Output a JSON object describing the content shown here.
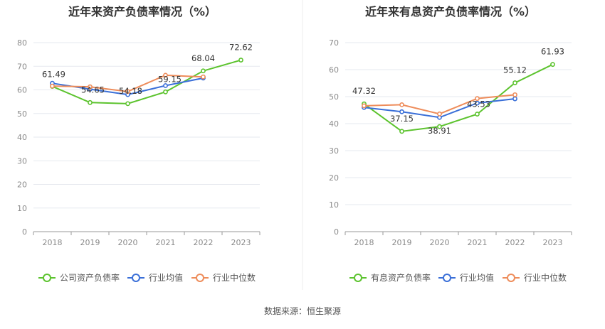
{
  "source": "数据来源：恒生聚源",
  "colors": {
    "company": "#5cc32e",
    "avg": "#3a6fd8",
    "median": "#ee8c5a",
    "grid": "#e6e9ef",
    "axis": "#9a9a9a"
  },
  "chart_data": [
    {
      "type": "line",
      "title": "近年来资产负债率情况（%）",
      "categories": [
        "2018",
        "2019",
        "2020",
        "2021",
        "2022",
        "2023"
      ],
      "ylim": [
        0,
        80
      ],
      "yticks": [
        0,
        10,
        20,
        30,
        40,
        50,
        60,
        70,
        80
      ],
      "grid": true,
      "legend_position": "bottom",
      "series": [
        {
          "name": "公司资产负债率",
          "color_key": "company",
          "values": [
            61.49,
            54.65,
            54.18,
            59.15,
            68.04,
            72.62
          ],
          "labels": [
            "61.49",
            "54.65",
            "54.18",
            "59.15",
            "68.04",
            "72.62"
          ]
        },
        {
          "name": "行业均值",
          "color_key": "avg",
          "values": [
            62.8,
            60.3,
            58.0,
            61.8,
            65.0,
            null
          ]
        },
        {
          "name": "行业中位数",
          "color_key": "median",
          "values": [
            61.6,
            61.3,
            59.3,
            66.2,
            65.5,
            null
          ]
        }
      ]
    },
    {
      "type": "line",
      "title": "近年来有息资产负债率情况（%）",
      "categories": [
        "2018",
        "2019",
        "2020",
        "2021",
        "2022",
        "2023"
      ],
      "ylim": [
        0,
        70
      ],
      "yticks": [
        0,
        10,
        20,
        30,
        40,
        50,
        60,
        70
      ],
      "grid": true,
      "legend_position": "bottom",
      "series": [
        {
          "name": "有息资产负债率",
          "color_key": "company",
          "values": [
            47.32,
            37.15,
            38.91,
            43.53,
            55.12,
            61.93
          ],
          "labels": [
            "47.32",
            "37.15",
            "38.91",
            "43.53",
            "55.12",
            "61.93"
          ]
        },
        {
          "name": "行业均值",
          "color_key": "avg",
          "values": [
            46.0,
            44.4,
            42.3,
            47.6,
            49.2,
            null
          ]
        },
        {
          "name": "行业中位数",
          "color_key": "median",
          "values": [
            46.6,
            47.0,
            43.6,
            49.3,
            50.7,
            null
          ]
        }
      ]
    }
  ]
}
